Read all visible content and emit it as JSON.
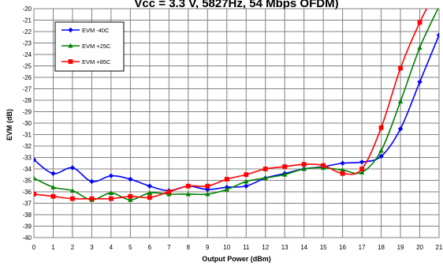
{
  "chart_data": {
    "type": "line",
    "title": "Vcc = 3.3 V, 5827Hz, 54 Mbps OFDM)",
    "xlabel": "Output Power (dBm)",
    "ylabel": "EVM (dB)",
    "xlim": [
      0,
      21
    ],
    "ylim": [
      -40,
      -20
    ],
    "x_ticks": [
      "0",
      "1",
      "2",
      "3",
      "4",
      "5",
      "6",
      "7",
      "8",
      "9",
      "10",
      "11",
      "12",
      "13",
      "14",
      "15",
      "16",
      "17",
      "18",
      "19",
      "20",
      "21"
    ],
    "y_ticks": [
      "-20",
      "-21",
      "-22",
      "-23",
      "-24",
      "-25",
      "-26",
      "-27",
      "-28",
      "-29",
      "-30",
      "-31",
      "-32",
      "-33",
      "-34",
      "-35",
      "-36",
      "-37",
      "-38",
      "-39",
      "-40"
    ],
    "grid": true,
    "legend_position": "top-left",
    "series": [
      {
        "name": "EVM -40C",
        "color": "#0000ff",
        "marker": "diamond",
        "x": [
          0,
          1,
          2,
          3,
          4,
          5,
          6,
          7,
          8,
          9,
          10,
          11,
          12,
          13,
          14,
          15,
          16,
          17,
          18,
          19,
          20,
          21
        ],
        "y": [
          -33.2,
          -34.4,
          -33.9,
          -35.1,
          -34.6,
          -34.9,
          -35.5,
          -35.9,
          -35.5,
          -35.8,
          -35.6,
          -35.5,
          -34.8,
          -34.4,
          -34.0,
          -33.8,
          -33.5,
          -33.4,
          -32.9,
          -30.5,
          -26.4,
          -22.3
        ]
      },
      {
        "name": "EVM +25C",
        "color": "#008000",
        "marker": "triangle",
        "x": [
          0,
          1,
          2,
          3,
          4,
          5,
          6,
          7,
          8,
          9,
          10,
          11,
          12,
          13,
          14,
          15,
          16,
          17,
          18,
          19,
          20,
          21
        ],
        "y": [
          -34.8,
          -35.6,
          -35.9,
          -36.7,
          -36.1,
          -36.7,
          -36.1,
          -36.2,
          -36.2,
          -36.2,
          -35.8,
          -35.1,
          -34.8,
          -34.5,
          -34.0,
          -33.9,
          -34.1,
          -34.3,
          -32.4,
          -28.1,
          -23.4,
          -19.8
        ]
      },
      {
        "name": "EVM +85C",
        "color": "#ff0000",
        "marker": "square",
        "x": [
          0,
          1,
          2,
          3,
          4,
          5,
          6,
          7,
          8,
          9,
          10,
          11,
          12,
          13,
          14,
          15,
          16,
          17,
          18,
          19,
          20,
          21
        ],
        "y": [
          -36.2,
          -36.4,
          -36.6,
          -36.6,
          -36.6,
          -36.4,
          -36.5,
          -36.0,
          -35.5,
          -35.5,
          -34.9,
          -34.5,
          -34.0,
          -33.8,
          -33.6,
          -33.7,
          -34.4,
          -34.0,
          -30.4,
          -25.2,
          -21.2,
          -18.0
        ]
      }
    ]
  }
}
